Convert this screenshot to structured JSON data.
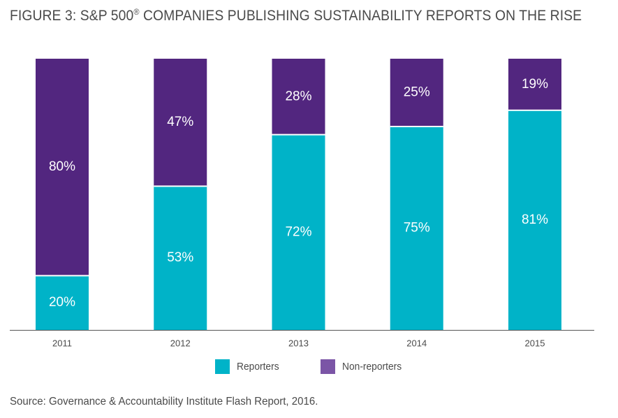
{
  "title": {
    "prefix": "FIGURE 3: S&P 500",
    "registered": "®",
    "suffix": " COMPANIES PUBLISHING SUSTAINABILITY REPORTS ON THE RISE"
  },
  "source": "Source: Governance & Accountability Institute Flash Report, 2016.",
  "colors": {
    "reporters": "#00B3C8",
    "non_reporters": "#52267F",
    "legend_non_reporters": "#7B55A6",
    "axis": "#555555",
    "bar_label": "#ffffff"
  },
  "legend": {
    "reporters": "Reporters",
    "non_reporters": "Non-reporters"
  },
  "chart_data": {
    "type": "bar",
    "stacked": true,
    "categories": [
      "2011",
      "2012",
      "2013",
      "2014",
      "2015"
    ],
    "series": [
      {
        "name": "Reporters",
        "values": [
          20,
          53,
          72,
          75,
          81
        ],
        "labels": [
          "20%",
          "53%",
          "72%",
          "75%",
          "81%"
        ]
      },
      {
        "name": "Non-reporters",
        "values": [
          80,
          47,
          28,
          25,
          19
        ],
        "labels": [
          "80%",
          "47%",
          "28%",
          "25%",
          "19%"
        ]
      }
    ],
    "ylim": [
      0,
      100
    ],
    "grid": false,
    "legend_position": "bottom"
  }
}
